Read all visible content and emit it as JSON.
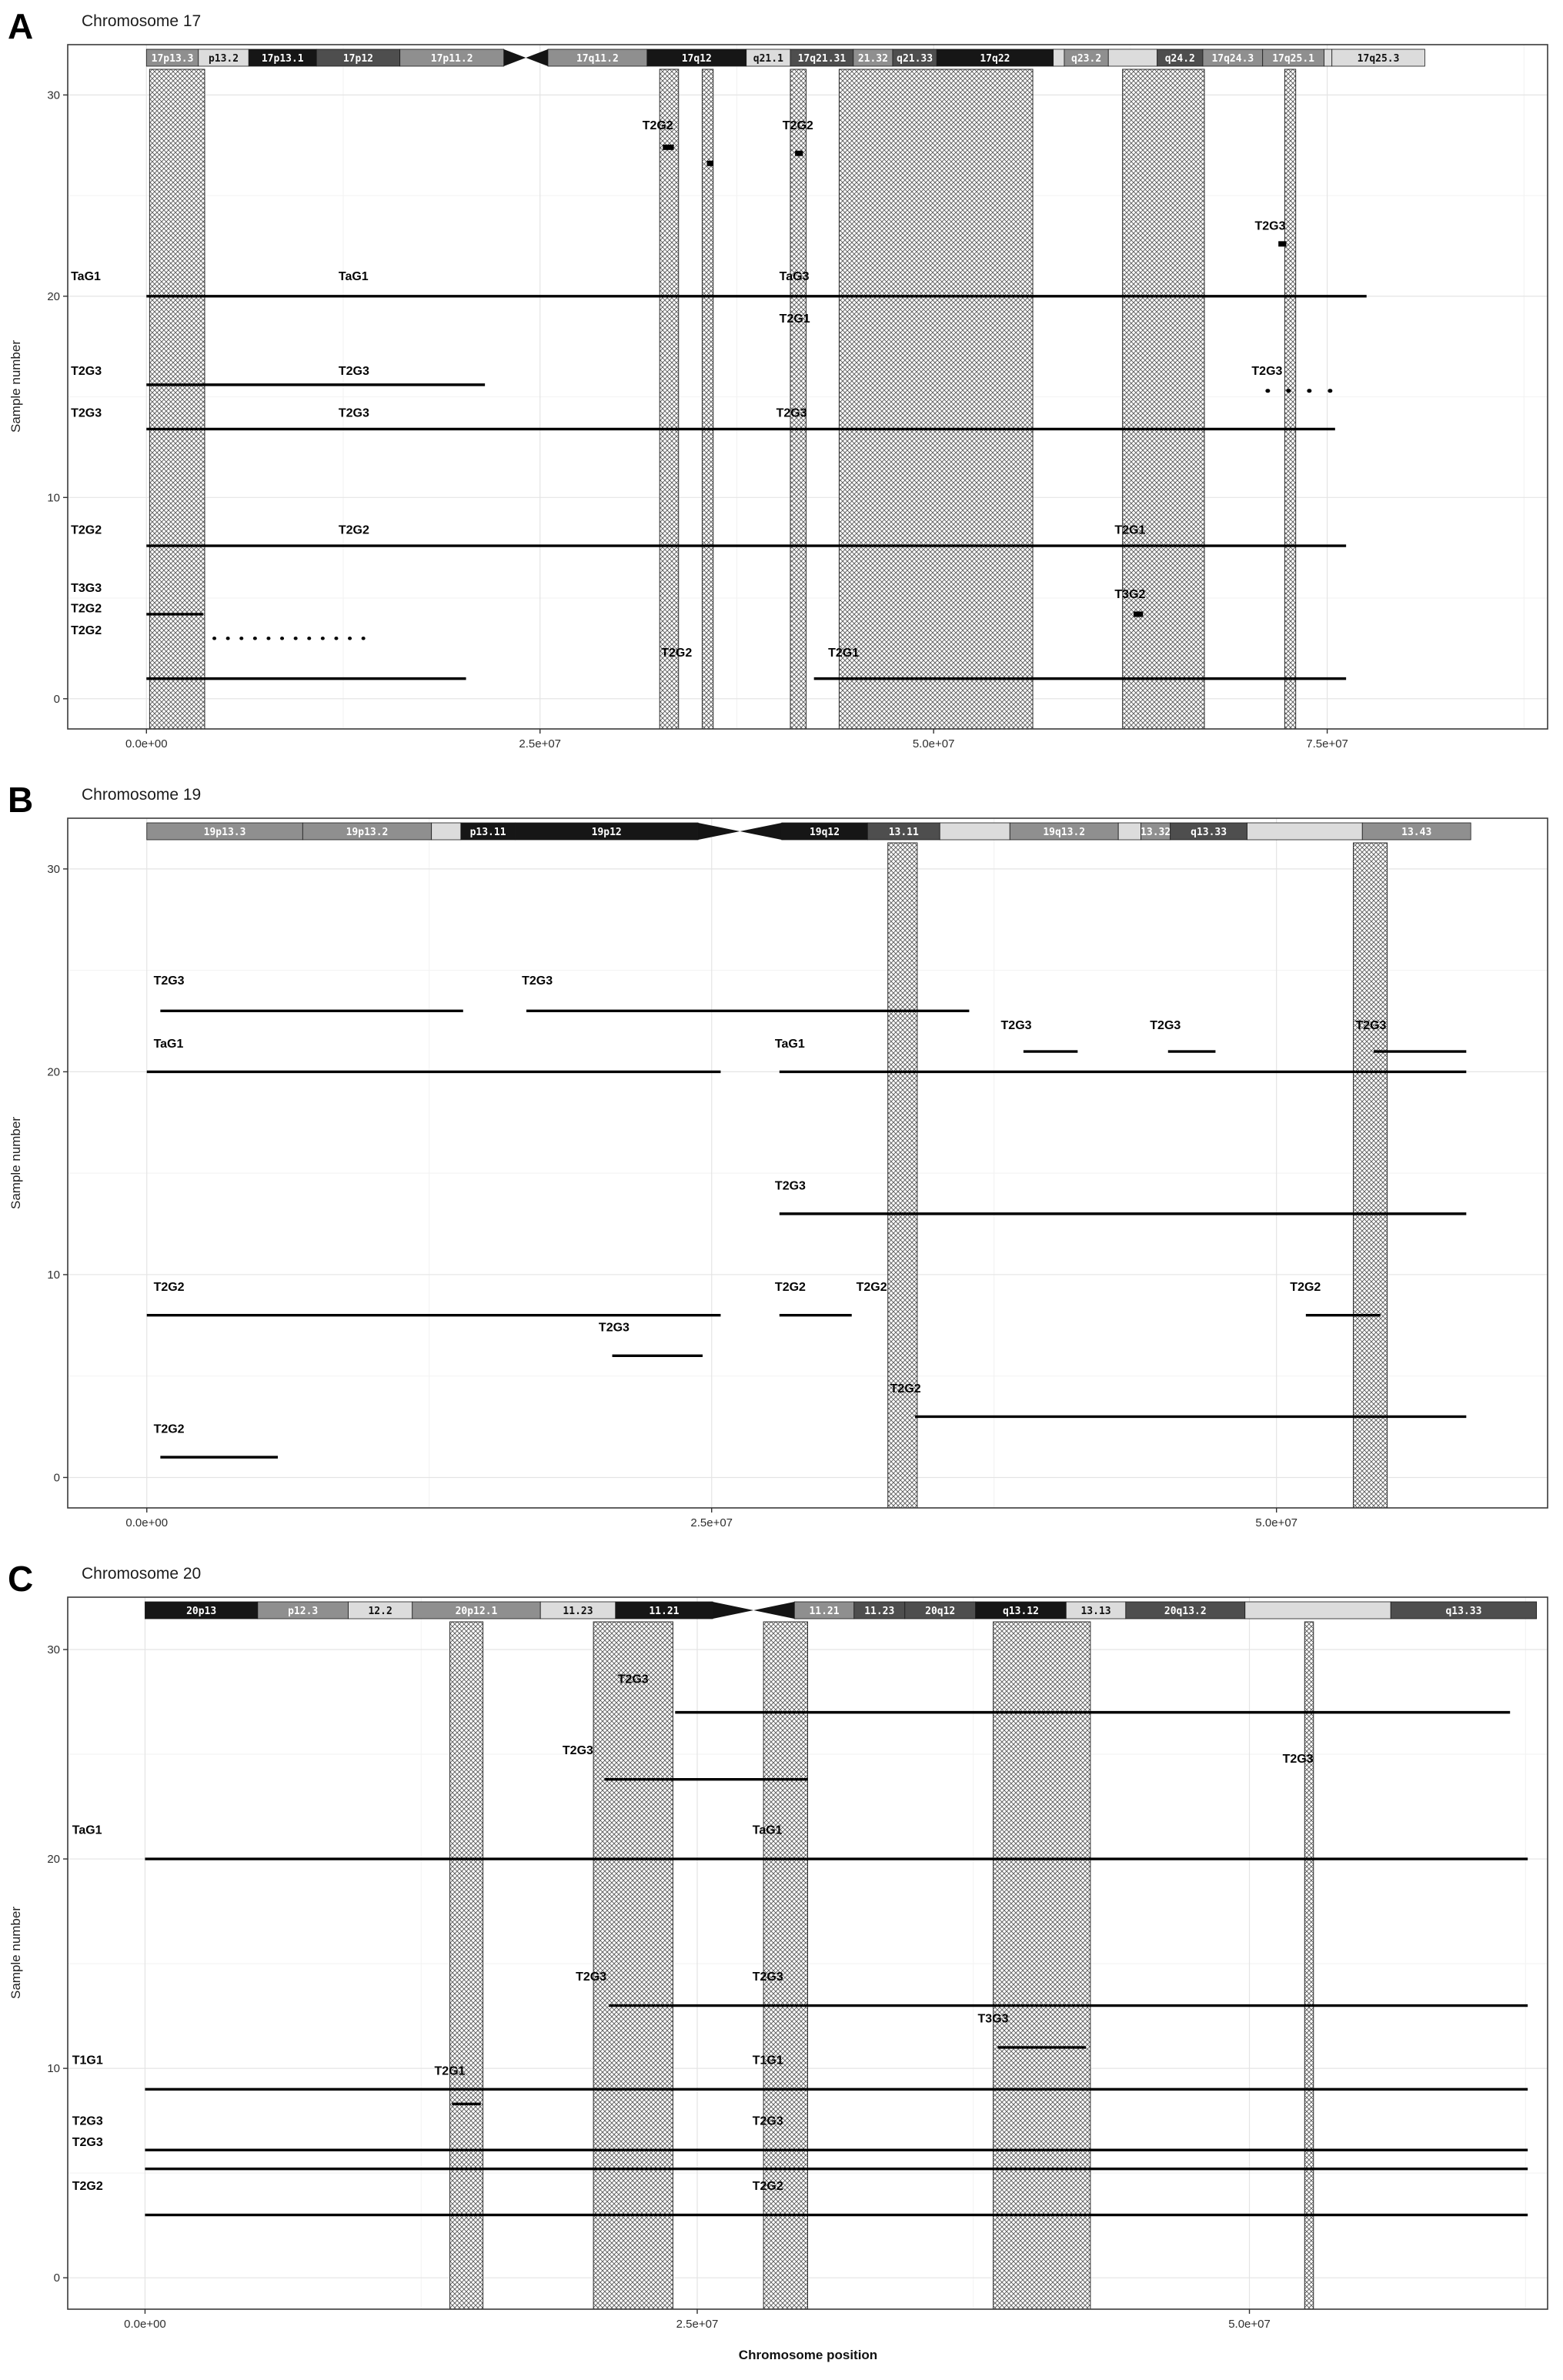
{
  "colors": {
    "background": "#ffffff",
    "plot_background": "#ffffff",
    "grid_major": "#e4e4e4",
    "grid_minor": "#f2f2f2",
    "plot_border": "#3a3a3a",
    "segment": "#000000",
    "hatch_line": "#5a5a5a",
    "hatch_background": "#fdfdfd",
    "tick_text": "#2f2f2f",
    "label_text": "#050505",
    "centromere": "#141414"
  },
  "shade_colors": {
    "black": "#161616",
    "dark": "#4e4e4e",
    "gray": "#8f8f8f",
    "light": "#dcdcdc"
  },
  "chart_data": [
    {
      "type": "line",
      "panel_letter": "A",
      "title": "Chromosome 17",
      "xlabel": "",
      "ylabel": "Sample number",
      "position_units": "Mb",
      "xlim": [
        -5,
        89
      ],
      "ylim": [
        -1.5,
        32.5
      ],
      "x_ticks": [
        {
          "value": 0,
          "label": "0.0e+00"
        },
        {
          "value": 25,
          "label": "2.5e+07"
        },
        {
          "value": 50,
          "label": "5.0e+07"
        },
        {
          "value": 75,
          "label": "7.5e+07"
        }
      ],
      "y_ticks": [
        {
          "value": 0,
          "label": "0"
        },
        {
          "value": 10,
          "label": "10"
        },
        {
          "value": 20,
          "label": "20"
        },
        {
          "value": 30,
          "label": "30"
        }
      ],
      "ideogram": {
        "length_mb": 81.2,
        "centromere_mb": [
          22.7,
          25.5
        ],
        "bands": [
          {
            "name": "17p13.3",
            "start": 0,
            "end": 3.3,
            "shade": "gray"
          },
          {
            "name": "p13.2",
            "start": 3.3,
            "end": 6.5,
            "shade": "light"
          },
          {
            "name": "17p13.1",
            "start": 6.5,
            "end": 10.8,
            "shade": "black"
          },
          {
            "name": "17p12",
            "start": 10.8,
            "end": 16.1,
            "shade": "dark"
          },
          {
            "name": "17p11.2",
            "start": 16.1,
            "end": 22.7,
            "shade": "gray"
          },
          {
            "name": "17q11.2",
            "start": 25.5,
            "end": 31.8,
            "shade": "gray"
          },
          {
            "name": "17q12",
            "start": 31.8,
            "end": 38.1,
            "shade": "black"
          },
          {
            "name": "q21.1",
            "start": 38.1,
            "end": 40.9,
            "shade": "light"
          },
          {
            "name": "17q21.31",
            "start": 40.9,
            "end": 44.9,
            "shade": "dark"
          },
          {
            "name": "21.32",
            "start": 44.9,
            "end": 47.4,
            "shade": "gray"
          },
          {
            "name": "q21.33",
            "start": 47.4,
            "end": 50.2,
            "shade": "dark"
          },
          {
            "name": "17q22",
            "start": 50.2,
            "end": 57.6,
            "shade": "black"
          },
          {
            "name": "",
            "start": 57.6,
            "end": 58.3,
            "shade": "light"
          },
          {
            "name": "q23.2",
            "start": 58.3,
            "end": 61.1,
            "shade": "gray"
          },
          {
            "name": "",
            "start": 61.1,
            "end": 64.2,
            "shade": "light"
          },
          {
            "name": "q24.2",
            "start": 64.2,
            "end": 67.1,
            "shade": "dark"
          },
          {
            "name": "17q24.3",
            "start": 67.1,
            "end": 70.9,
            "shade": "gray"
          },
          {
            "name": "17q25.1",
            "start": 70.9,
            "end": 74.8,
            "shade": "gray"
          },
          {
            "name": "",
            "start": 74.8,
            "end": 75.3,
            "shade": "light"
          },
          {
            "name": "17q25.3",
            "start": 75.3,
            "end": 81.2,
            "shade": "light"
          }
        ]
      },
      "hatched_regions_mb": [
        [
          0.2,
          3.7
        ],
        [
          32.6,
          33.8
        ],
        [
          35.3,
          36.0
        ],
        [
          40.9,
          41.9
        ],
        [
          44.0,
          56.3
        ],
        [
          62.0,
          67.2
        ],
        [
          72.3,
          73.0
        ]
      ],
      "segments": [
        {
          "y": 20,
          "x1": 0,
          "x2": 77.5,
          "style": "solid"
        },
        {
          "y": 15.6,
          "x1": 0,
          "x2": 21.5,
          "style": "solid"
        },
        {
          "y": 15.3,
          "x1": 71.2,
          "x2": 75.8,
          "style": "dotted-sparse"
        },
        {
          "y": 13.4,
          "x1": 0,
          "x2": 75.5,
          "style": "solid"
        },
        {
          "y": 7.6,
          "x1": 0,
          "x2": 76.2,
          "style": "solid"
        },
        {
          "y": 4.2,
          "x1": 0,
          "x2": 3.6,
          "style": "solid"
        },
        {
          "y": 3.0,
          "x1": 4.3,
          "x2": 14.6,
          "style": "dotted"
        },
        {
          "y": 1.0,
          "x1": 0,
          "x2": 20.3,
          "style": "solid"
        },
        {
          "y": 1.0,
          "x1": 42.4,
          "x2": 76.2,
          "style": "solid"
        }
      ],
      "marks": [
        {
          "x1": 32.8,
          "x2": 33.5,
          "y": 27.4
        },
        {
          "x1": 35.6,
          "x2": 36.0,
          "y": 26.6
        },
        {
          "x1": 41.2,
          "x2": 41.7,
          "y": 27.1
        },
        {
          "x1": 71.9,
          "x2": 72.4,
          "y": 22.6
        },
        {
          "x1": 62.7,
          "x2": 63.3,
          "y": 4.2
        }
      ],
      "labels": [
        {
          "text": "T2G2",
          "x": 31.5,
          "y": 28.3
        },
        {
          "text": "T2G2",
          "x": 40.4,
          "y": 28.3
        },
        {
          "text": "T2G3",
          "x": 70.4,
          "y": 23.3
        },
        {
          "text": "TaG1",
          "x": -4.8,
          "y": 20.8
        },
        {
          "text": "TaG1",
          "x": 12.2,
          "y": 20.8
        },
        {
          "text": "TaG3",
          "x": 40.2,
          "y": 20.8
        },
        {
          "text": "T2G1",
          "x": 40.2,
          "y": 18.7
        },
        {
          "text": "T2G3",
          "x": -4.8,
          "y": 16.1
        },
        {
          "text": "T2G3",
          "x": 12.2,
          "y": 16.1
        },
        {
          "text": "T2G3",
          "x": 70.2,
          "y": 16.1
        },
        {
          "text": "T2G3",
          "x": -4.8,
          "y": 14.0
        },
        {
          "text": "T2G3",
          "x": 12.2,
          "y": 14.0
        },
        {
          "text": "T2G3",
          "x": 40.0,
          "y": 14.0
        },
        {
          "text": "T2G2",
          "x": -4.8,
          "y": 8.2
        },
        {
          "text": "T2G2",
          "x": 12.2,
          "y": 8.2
        },
        {
          "text": "T2G1",
          "x": 61.5,
          "y": 8.2
        },
        {
          "text": "T3G3",
          "x": -4.8,
          "y": 5.3
        },
        {
          "text": "T3G2",
          "x": 61.5,
          "y": 5.0
        },
        {
          "text": "T2G2",
          "x": -4.8,
          "y": 4.3
        },
        {
          "text": "T2G2",
          "x": -4.8,
          "y": 3.2
        },
        {
          "text": "T2G2",
          "x": 32.7,
          "y": 2.1
        },
        {
          "text": "T2G1",
          "x": 43.3,
          "y": 2.1
        }
      ]
    },
    {
      "type": "line",
      "panel_letter": "B",
      "title": "Chromosome 19",
      "xlabel": "",
      "ylabel": "Sample number",
      "position_units": "Mb",
      "xlim": [
        -3.5,
        62
      ],
      "ylim": [
        -1.5,
        32.5
      ],
      "x_ticks": [
        {
          "value": 0,
          "label": "0.0e+00"
        },
        {
          "value": 25,
          "label": "2.5e+07"
        },
        {
          "value": 50,
          "label": "5.0e+07"
        }
      ],
      "y_ticks": [
        {
          "value": 0,
          "label": "0"
        },
        {
          "value": 10,
          "label": "10"
        },
        {
          "value": 20,
          "label": "20"
        },
        {
          "value": 30,
          "label": "30"
        }
      ],
      "ideogram": {
        "length_mb": 58.6,
        "centromere_mb": [
          24.4,
          28.1
        ],
        "bands": [
          {
            "name": "19p13.3",
            "start": 0,
            "end": 6.9,
            "shade": "gray"
          },
          {
            "name": "19p13.2",
            "start": 6.9,
            "end": 12.6,
            "shade": "gray"
          },
          {
            "name": "",
            "start": 12.6,
            "end": 13.9,
            "shade": "light"
          },
          {
            "name": "p13.11",
            "start": 13.9,
            "end": 16.3,
            "shade": "black"
          },
          {
            "name": "19p12",
            "start": 16.3,
            "end": 24.4,
            "shade": "black"
          },
          {
            "name": "19q12",
            "start": 28.1,
            "end": 31.9,
            "shade": "black"
          },
          {
            "name": "13.11",
            "start": 31.9,
            "end": 35.1,
            "shade": "dark"
          },
          {
            "name": "",
            "start": 35.1,
            "end": 38.2,
            "shade": "light"
          },
          {
            "name": "19q13.2",
            "start": 38.2,
            "end": 43.0,
            "shade": "gray"
          },
          {
            "name": "",
            "start": 43.0,
            "end": 44.0,
            "shade": "light"
          },
          {
            "name": "13.32",
            "start": 44.0,
            "end": 45.3,
            "shade": "gray"
          },
          {
            "name": "q13.33",
            "start": 45.3,
            "end": 48.7,
            "shade": "dark"
          },
          {
            "name": "",
            "start": 48.7,
            "end": 53.8,
            "shade": "light"
          },
          {
            "name": "13.43",
            "start": 53.8,
            "end": 58.6,
            "shade": "gray"
          }
        ]
      },
      "hatched_regions_mb": [
        [
          32.8,
          34.1
        ],
        [
          53.4,
          54.9
        ]
      ],
      "segments": [
        {
          "y": 23,
          "x1": 0.6,
          "x2": 14.0,
          "style": "solid"
        },
        {
          "y": 23,
          "x1": 16.8,
          "x2": 36.4,
          "style": "solid"
        },
        {
          "y": 21,
          "x1": 38.8,
          "x2": 41.2,
          "style": "solid"
        },
        {
          "y": 21,
          "x1": 45.2,
          "x2": 47.3,
          "style": "solid"
        },
        {
          "y": 21,
          "x1": 54.3,
          "x2": 58.4,
          "style": "solid"
        },
        {
          "y": 20,
          "x1": 0,
          "x2": 25.4,
          "style": "solid"
        },
        {
          "y": 20,
          "x1": 28.0,
          "x2": 58.4,
          "style": "solid"
        },
        {
          "y": 13,
          "x1": 28.0,
          "x2": 58.4,
          "style": "solid"
        },
        {
          "y": 8,
          "x1": 0,
          "x2": 25.4,
          "style": "solid"
        },
        {
          "y": 8,
          "x1": 28.0,
          "x2": 31.2,
          "style": "solid"
        },
        {
          "y": 8,
          "x1": 51.3,
          "x2": 54.6,
          "style": "solid"
        },
        {
          "y": 6,
          "x1": 20.6,
          "x2": 24.6,
          "style": "solid"
        },
        {
          "y": 3,
          "x1": 34.0,
          "x2": 58.4,
          "style": "solid"
        },
        {
          "y": 1,
          "x1": 0.6,
          "x2": 5.8,
          "style": "solid"
        }
      ],
      "marks": [],
      "labels": [
        {
          "text": "T2G3",
          "x": 0.3,
          "y": 24.3
        },
        {
          "text": "T2G3",
          "x": 16.6,
          "y": 24.3
        },
        {
          "text": "T2G3",
          "x": 37.8,
          "y": 22.1
        },
        {
          "text": "T2G3",
          "x": 44.4,
          "y": 22.1
        },
        {
          "text": "T2G3",
          "x": 53.5,
          "y": 22.1
        },
        {
          "text": "TaG1",
          "x": 0.3,
          "y": 21.2
        },
        {
          "text": "TaG1",
          "x": 27.8,
          "y": 21.2
        },
        {
          "text": "T2G3",
          "x": 27.8,
          "y": 14.2
        },
        {
          "text": "T2G2",
          "x": 0.3,
          "y": 9.2
        },
        {
          "text": "T2G2",
          "x": 27.8,
          "y": 9.2
        },
        {
          "text": "T2G2",
          "x": 31.4,
          "y": 9.2
        },
        {
          "text": "T2G2",
          "x": 50.6,
          "y": 9.2
        },
        {
          "text": "T2G3",
          "x": 20.0,
          "y": 7.2
        },
        {
          "text": "T2G2",
          "x": 32.9,
          "y": 4.2
        },
        {
          "text": "T2G2",
          "x": 0.3,
          "y": 2.2
        }
      ]
    },
    {
      "type": "line",
      "panel_letter": "C",
      "title": "Chromosome 20",
      "xlabel": "Chromosome position",
      "ylabel": "Sample number",
      "position_units": "Mb",
      "xlim": [
        -3.5,
        63.5
      ],
      "ylim": [
        -1.5,
        32.5
      ],
      "x_ticks": [
        {
          "value": 0,
          "label": "0.0e+00"
        },
        {
          "value": 25,
          "label": "2.5e+07"
        },
        {
          "value": 50,
          "label": "5.0e+07"
        }
      ],
      "y_ticks": [
        {
          "value": 0,
          "label": "0"
        },
        {
          "value": 10,
          "label": "10"
        },
        {
          "value": 20,
          "label": "20"
        },
        {
          "value": 30,
          "label": "30"
        }
      ],
      "ideogram": {
        "length_mb": 63.0,
        "centromere_mb": [
          25.7,
          29.4
        ],
        "bands": [
          {
            "name": "20p13",
            "start": 0,
            "end": 5.1,
            "shade": "black"
          },
          {
            "name": "p12.3",
            "start": 5.1,
            "end": 9.2,
            "shade": "gray"
          },
          {
            "name": "12.2",
            "start": 9.2,
            "end": 12.1,
            "shade": "light"
          },
          {
            "name": "20p12.1",
            "start": 12.1,
            "end": 17.9,
            "shade": "gray"
          },
          {
            "name": "11.23",
            "start": 17.9,
            "end": 21.3,
            "shade": "light"
          },
          {
            "name": "11.21",
            "start": 21.3,
            "end": 25.7,
            "shade": "black"
          },
          {
            "name": "11.21",
            "start": 29.4,
            "end": 32.1,
            "shade": "gray"
          },
          {
            "name": "11.23",
            "start": 32.1,
            "end": 34.4,
            "shade": "dark"
          },
          {
            "name": "20q12",
            "start": 34.4,
            "end": 37.6,
            "shade": "dark"
          },
          {
            "name": "q13.12",
            "start": 37.6,
            "end": 41.7,
            "shade": "black"
          },
          {
            "name": "13.13",
            "start": 41.7,
            "end": 44.4,
            "shade": "light"
          },
          {
            "name": "20q13.2",
            "start": 44.4,
            "end": 49.8,
            "shade": "dark"
          },
          {
            "name": "",
            "start": 49.8,
            "end": 56.4,
            "shade": "light"
          },
          {
            "name": "q13.33",
            "start": 56.4,
            "end": 63.0,
            "shade": "dark"
          }
        ]
      },
      "hatched_regions_mb": [
        [
          13.8,
          15.3
        ],
        [
          20.3,
          23.9
        ],
        [
          28.0,
          30.0
        ],
        [
          38.4,
          42.8
        ],
        [
          52.5,
          52.9
        ]
      ],
      "segments": [
        {
          "y": 27,
          "x1": 24.0,
          "x2": 61.8,
          "style": "solid"
        },
        {
          "y": 23.8,
          "x1": 20.8,
          "x2": 30.0,
          "style": "solid"
        },
        {
          "y": 20,
          "x1": 0,
          "x2": 62.6,
          "style": "solid"
        },
        {
          "y": 13,
          "x1": 21.0,
          "x2": 62.6,
          "style": "solid"
        },
        {
          "y": 11,
          "x1": 38.6,
          "x2": 42.6,
          "style": "solid"
        },
        {
          "y": 9,
          "x1": 0,
          "x2": 62.6,
          "style": "solid"
        },
        {
          "y": 8.3,
          "x1": 13.9,
          "x2": 15.2,
          "style": "solid"
        },
        {
          "y": 6.1,
          "x1": 0,
          "x2": 62.6,
          "style": "solid"
        },
        {
          "y": 5.2,
          "x1": 0,
          "x2": 62.6,
          "style": "solid"
        },
        {
          "y": 3,
          "x1": 0,
          "x2": 62.6,
          "style": "solid"
        }
      ],
      "marks": [],
      "labels": [
        {
          "text": "T2G3",
          "x": 21.4,
          "y": 28.4
        },
        {
          "text": "T2G3",
          "x": 18.9,
          "y": 25.0
        },
        {
          "text": "T2G3",
          "x": 51.5,
          "y": 24.6
        },
        {
          "text": "TaG1",
          "x": -3.3,
          "y": 21.2
        },
        {
          "text": "TaG1",
          "x": 27.5,
          "y": 21.2
        },
        {
          "text": "T2G3",
          "x": 19.5,
          "y": 14.2
        },
        {
          "text": "T2G3",
          "x": 27.5,
          "y": 14.2
        },
        {
          "text": "T3G3",
          "x": 37.7,
          "y": 12.2
        },
        {
          "text": "T1G1",
          "x": -3.3,
          "y": 10.2
        },
        {
          "text": "T1G1",
          "x": 27.5,
          "y": 10.2
        },
        {
          "text": "T2G1",
          "x": 13.1,
          "y": 9.7
        },
        {
          "text": "T2G3",
          "x": -3.3,
          "y": 7.3
        },
        {
          "text": "T2G3",
          "x": 27.5,
          "y": 7.3
        },
        {
          "text": "T2G3",
          "x": -3.3,
          "y": 6.3
        },
        {
          "text": "T2G2",
          "x": -3.3,
          "y": 4.2
        },
        {
          "text": "T2G2",
          "x": 27.5,
          "y": 4.2
        }
      ]
    }
  ]
}
